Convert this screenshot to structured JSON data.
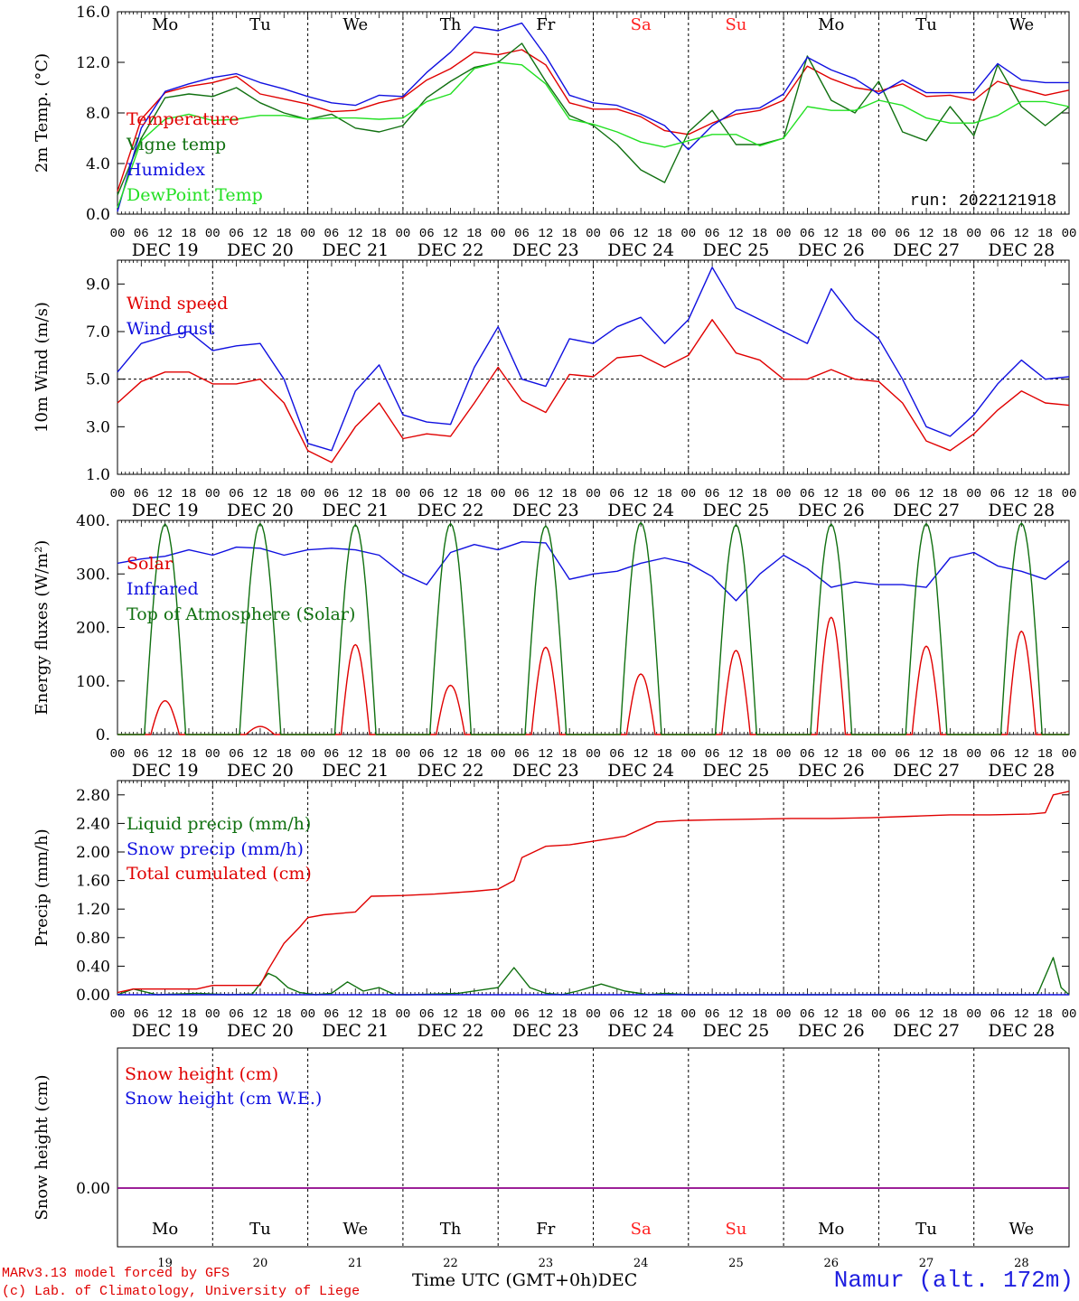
{
  "footer": {
    "model": "MARv3.13 model forced by GFS",
    "lab": "(c) Lab. of Climatology, University of Liege",
    "x_title": "Time UTC (GMT+0h)DEC",
    "station": "Namur (alt. 172m)"
  },
  "days": {
    "weekdays": [
      "Mo",
      "Tu",
      "We",
      "Th",
      "Fr",
      "Sa",
      "Su",
      "Mo",
      "Tu",
      "We"
    ],
    "weekend_flags": [
      false,
      false,
      false,
      false,
      false,
      true,
      true,
      false,
      false,
      false
    ],
    "dates": [
      "DEC 19",
      "DEC 20",
      "DEC 21",
      "DEC 22",
      "DEC 23",
      "DEC 24",
      "DEC 25",
      "DEC 26",
      "DEC 27",
      "DEC 28"
    ],
    "day_numbers": [
      "19",
      "20",
      "21",
      "22",
      "23",
      "24",
      "25",
      "26",
      "27",
      "28"
    ],
    "hour_labels": [
      "00",
      "06",
      "12",
      "18"
    ],
    "final_hour_label": "00"
  },
  "colors": {
    "red": "#e00000",
    "blue": "#1010e0",
    "green": "#107010",
    "lightgreen": "#22e022",
    "weekend": "#ff2020",
    "purple": "#8000a0"
  },
  "chart_data": [
    {
      "type": "line",
      "ylabel": "2m Temp. (°C)",
      "ylim": [
        0,
        16
      ],
      "yticks": [
        "0.0",
        "4.0",
        "8.0",
        "12.0",
        "16.0"
      ],
      "run_label": "run: 2022121918",
      "x_unit": "hours since 2022-12-19 00 UTC",
      "series": [
        {
          "name": "Temperature",
          "color": "#e00000",
          "x": [
            0,
            6,
            12,
            18,
            24,
            30,
            36,
            42,
            48,
            54,
            60,
            66,
            72,
            78,
            84,
            90,
            96,
            102,
            108,
            114,
            120,
            126,
            132,
            138,
            144,
            150,
            156,
            162,
            168,
            174,
            180,
            186,
            192,
            198,
            204,
            210,
            216,
            222,
            228,
            234,
            240
          ],
          "y": [
            1.8,
            7.5,
            9.6,
            10.1,
            10.4,
            10.9,
            9.5,
            9.1,
            8.7,
            8.1,
            8.2,
            8.8,
            9.2,
            10.6,
            11.5,
            12.8,
            12.6,
            13.0,
            11.8,
            8.8,
            8.3,
            8.3,
            7.7,
            6.6,
            6.3,
            7.2,
            7.9,
            8.2,
            9.0,
            11.7,
            10.7,
            10.0,
            9.7,
            10.3,
            9.3,
            9.4,
            9.0,
            10.5,
            9.9,
            9.4,
            9.8
          ]
        },
        {
          "name": "Vigne temp",
          "color": "#107010",
          "x": [
            0,
            6,
            12,
            18,
            24,
            30,
            36,
            42,
            48,
            54,
            60,
            66,
            72,
            78,
            84,
            90,
            96,
            102,
            108,
            114,
            120,
            126,
            132,
            138,
            144,
            150,
            156,
            162,
            168,
            174,
            180,
            186,
            192,
            198,
            204,
            210,
            216,
            222,
            228,
            234,
            240
          ],
          "y": [
            1.5,
            6.0,
            9.2,
            9.5,
            9.3,
            10.0,
            8.8,
            8.0,
            7.5,
            7.9,
            6.8,
            6.5,
            7.0,
            9.2,
            10.5,
            11.6,
            12.0,
            13.5,
            10.5,
            7.8,
            7.0,
            5.5,
            3.5,
            2.5,
            6.5,
            8.2,
            5.5,
            5.5,
            6.0,
            12.5,
            9.0,
            8.0,
            10.5,
            6.5,
            5.8,
            8.5,
            6.2,
            11.8,
            8.5,
            7.0,
            8.5
          ]
        },
        {
          "name": "Humidex",
          "color": "#1010e0",
          "x": [
            0,
            6,
            12,
            18,
            24,
            30,
            36,
            42,
            48,
            54,
            60,
            66,
            72,
            78,
            84,
            90,
            96,
            102,
            108,
            114,
            120,
            126,
            132,
            138,
            144,
            150,
            156,
            162,
            168,
            174,
            180,
            186,
            192,
            198,
            204,
            210,
            216,
            222,
            228,
            234,
            240
          ],
          "y": [
            0.2,
            6.8,
            9.7,
            10.3,
            10.8,
            11.1,
            10.4,
            9.9,
            9.3,
            8.8,
            8.6,
            9.4,
            9.3,
            11.2,
            12.8,
            14.8,
            14.5,
            15.1,
            12.5,
            9.4,
            8.8,
            8.6,
            7.9,
            7.0,
            5.1,
            7.0,
            8.2,
            8.4,
            9.5,
            12.4,
            11.4,
            10.7,
            9.5,
            10.6,
            9.6,
            9.6,
            9.6,
            11.9,
            10.6,
            10.4,
            10.4
          ]
        },
        {
          "name": "DewPoint Temp",
          "color": "#22e022",
          "x": [
            0,
            6,
            12,
            18,
            24,
            30,
            36,
            42,
            48,
            54,
            60,
            66,
            72,
            78,
            84,
            90,
            96,
            102,
            108,
            114,
            120,
            126,
            132,
            138,
            144,
            150,
            156,
            162,
            168,
            174,
            180,
            186,
            192,
            198,
            204,
            210,
            216,
            222,
            228,
            234,
            240
          ],
          "y": [
            0.5,
            5.8,
            7.5,
            7.9,
            7.4,
            7.5,
            7.8,
            7.8,
            7.5,
            7.6,
            7.6,
            7.5,
            7.6,
            8.9,
            9.5,
            11.5,
            12.0,
            11.8,
            10.3,
            7.5,
            7.1,
            6.5,
            5.7,
            5.3,
            5.8,
            6.3,
            6.3,
            5.4,
            6.0,
            8.5,
            8.2,
            8.2,
            9.0,
            8.6,
            7.6,
            7.2,
            7.2,
            7.8,
            8.9,
            8.9,
            8.5
          ]
        }
      ]
    },
    {
      "type": "line",
      "ylabel": "10m Wind (m/s)",
      "ylim": [
        1,
        10
      ],
      "yticks": [
        "1.0",
        "3.0",
        "5.0",
        "7.0",
        "9.0"
      ],
      "reference_line": 5,
      "x_unit": "hours since 2022-12-19 00 UTC",
      "series": [
        {
          "name": "Wind speed",
          "color": "#e00000",
          "x": [
            0,
            6,
            12,
            18,
            24,
            30,
            36,
            42,
            48,
            54,
            60,
            66,
            72,
            78,
            84,
            90,
            96,
            102,
            108,
            114,
            120,
            126,
            132,
            138,
            144,
            150,
            156,
            162,
            168,
            174,
            180,
            186,
            192,
            198,
            204,
            210,
            216,
            222,
            228,
            234,
            240
          ],
          "y": [
            4.0,
            4.9,
            5.3,
            5.3,
            4.8,
            4.8,
            5.0,
            4.0,
            2.0,
            1.5,
            3.0,
            4.0,
            2.5,
            2.7,
            2.6,
            4.0,
            5.5,
            4.1,
            3.6,
            5.2,
            5.1,
            5.9,
            6.0,
            5.5,
            6.0,
            7.5,
            6.1,
            5.8,
            5.0,
            5.0,
            5.4,
            5.0,
            4.9,
            4.0,
            2.4,
            2.0,
            2.7,
            3.7,
            4.5,
            4.0,
            3.9
          ]
        },
        {
          "name": "Wind gust",
          "color": "#1010e0",
          "x": [
            0,
            6,
            12,
            18,
            24,
            30,
            36,
            42,
            48,
            54,
            60,
            66,
            72,
            78,
            84,
            90,
            96,
            102,
            108,
            114,
            120,
            126,
            132,
            138,
            144,
            150,
            156,
            162,
            168,
            174,
            180,
            186,
            192,
            198,
            204,
            210,
            216,
            222,
            228,
            234,
            240
          ],
          "y": [
            5.3,
            6.5,
            6.8,
            7.0,
            6.2,
            6.4,
            6.5,
            5.0,
            2.3,
            2.0,
            4.5,
            5.6,
            3.5,
            3.2,
            3.1,
            5.5,
            7.2,
            5.0,
            4.7,
            6.7,
            6.5,
            7.2,
            7.6,
            6.5,
            7.5,
            9.7,
            8.0,
            7.5,
            7.0,
            6.5,
            8.8,
            7.5,
            6.7,
            5.0,
            3.0,
            2.6,
            3.5,
            4.8,
            5.8,
            5.0,
            5.1
          ]
        }
      ]
    },
    {
      "type": "line",
      "ylabel": "Energy fluxes (W/m²)",
      "ylim": [
        0,
        400
      ],
      "yticks": [
        "0.",
        "100.",
        "200.",
        "300.",
        "400."
      ],
      "x_unit": "hours since 2022-12-19 00 UTC",
      "series": [
        {
          "name": "Solar",
          "color": "#e00000",
          "daily_peak": [
            63,
            15,
            168,
            92,
            163,
            113,
            157,
            219,
            165,
            193
          ]
        },
        {
          "name": "Infrared",
          "color": "#1010e0",
          "x": [
            0,
            6,
            12,
            18,
            24,
            30,
            36,
            42,
            48,
            54,
            60,
            66,
            72,
            78,
            84,
            90,
            96,
            102,
            108,
            114,
            120,
            126,
            132,
            138,
            144,
            150,
            156,
            162,
            168,
            174,
            180,
            186,
            192,
            198,
            204,
            210,
            216,
            222,
            228,
            234,
            240
          ],
          "y": [
            320,
            328,
            333,
            345,
            335,
            350,
            348,
            335,
            345,
            348,
            345,
            335,
            300,
            280,
            340,
            355,
            345,
            360,
            358,
            290,
            300,
            305,
            320,
            330,
            320,
            295,
            250,
            300,
            335,
            310,
            275,
            285,
            280,
            280,
            275,
            330,
            340,
            315,
            305,
            290,
            325
          ]
        },
        {
          "name": "Top of Atmosphere (Solar)",
          "color": "#107010",
          "daily_peak": [
            393,
            394,
            392,
            394,
            390,
            396,
            392,
            393,
            394,
            395
          ]
        }
      ]
    },
    {
      "type": "line",
      "ylabel": "Precip (mm/h)",
      "ylim": [
        0,
        3.0
      ],
      "yticks": [
        "0.00",
        "0.40",
        "0.80",
        "1.20",
        "1.60",
        "2.00",
        "2.40",
        "2.80"
      ],
      "x_unit": "hours since 2022-12-19 00 UTC",
      "series": [
        {
          "name": "Liquid precip (mm/h)",
          "color": "#107010",
          "x": [
            0,
            4,
            10,
            20,
            28,
            34,
            38,
            40,
            43,
            46,
            50,
            54,
            58,
            62,
            66,
            70,
            74,
            80,
            86,
            96,
            100,
            104,
            108,
            112,
            116,
            122,
            128,
            134,
            138,
            144,
            150,
            160,
            170,
            180,
            190,
            200,
            210,
            220,
            226,
            232,
            236,
            238,
            240
          ],
          "y": [
            0.0,
            0.08,
            0.0,
            0.02,
            0.0,
            0.01,
            0.3,
            0.25,
            0.1,
            0.03,
            0.0,
            0.02,
            0.18,
            0.05,
            0.1,
            0.0,
            0.0,
            0.01,
            0.02,
            0.1,
            0.38,
            0.1,
            0.02,
            0.0,
            0.05,
            0.15,
            0.05,
            0.0,
            0.02,
            0.0,
            0.0,
            0.0,
            0.0,
            0.0,
            0.0,
            0.0,
            0.0,
            0.0,
            0.0,
            0.0,
            0.52,
            0.1,
            0.0
          ]
        },
        {
          "name": "Snow precip (mm/h)",
          "color": "#1010e0",
          "x": [
            0,
            240
          ],
          "y": [
            0,
            0
          ]
        },
        {
          "name": "Total cumulated (cm)",
          "color": "#e00000",
          "x": [
            0,
            4,
            20,
            24,
            36,
            38,
            42,
            46,
            48,
            52,
            60,
            64,
            72,
            80,
            90,
            96,
            100,
            102,
            108,
            114,
            120,
            128,
            136,
            142,
            150,
            160,
            170,
            180,
            190,
            200,
            210,
            220,
            230,
            234,
            236,
            240
          ],
          "y": [
            0.03,
            0.08,
            0.08,
            0.13,
            0.13,
            0.35,
            0.72,
            0.95,
            1.08,
            1.12,
            1.16,
            1.38,
            1.39,
            1.41,
            1.45,
            1.48,
            1.6,
            1.92,
            2.08,
            2.1,
            2.15,
            2.22,
            2.42,
            2.44,
            2.45,
            2.46,
            2.47,
            2.47,
            2.48,
            2.5,
            2.52,
            2.52,
            2.53,
            2.55,
            2.8,
            2.85
          ]
        }
      ]
    },
    {
      "type": "line",
      "ylabel": "Snow height (cm)",
      "yticks": [
        "0.00"
      ],
      "x_unit": "hours since 2022-12-19 00 UTC",
      "series": [
        {
          "name": "Snow height (cm)",
          "color": "#e00000",
          "x": [
            0,
            240
          ],
          "y": [
            0,
            0
          ]
        },
        {
          "name": "Snow height (cm W.E.)",
          "color": "#1010e0",
          "x": [
            0,
            240
          ],
          "y": [
            0,
            0
          ]
        }
      ]
    }
  ]
}
